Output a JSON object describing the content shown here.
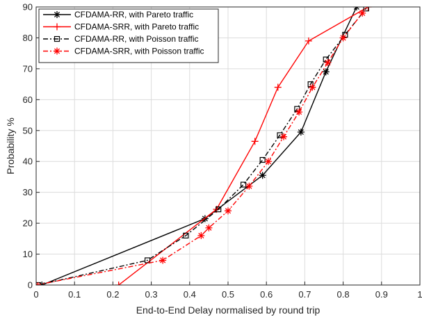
{
  "chart_data": {
    "type": "line",
    "xlabel": "End-to-End Delay normalised by round trip",
    "ylabel": "Probability %",
    "xlim": [
      0,
      1
    ],
    "ylim": [
      0,
      90
    ],
    "xticks": [
      0,
      0.1,
      0.2,
      0.3,
      0.4,
      0.5,
      0.6,
      0.7,
      0.8,
      0.9,
      1
    ],
    "xtick_labels": [
      "0",
      "0.1",
      "0.2",
      "0.3",
      "0.4",
      "0.5",
      "0.6",
      "0.7",
      "0.8",
      "0.9",
      "1"
    ],
    "yticks": [
      0,
      10,
      20,
      30,
      40,
      50,
      60,
      70,
      80,
      90
    ],
    "ytick_labels": [
      "0",
      "10",
      "20",
      "30",
      "40",
      "50",
      "60",
      "70",
      "80",
      "90"
    ],
    "grid": true,
    "legend_position": "top-left",
    "series": [
      {
        "name": "CFDAMA-RR, with Pareto traffic",
        "color": "#000000",
        "line_style": "solid",
        "marker": "asterisk",
        "x": [
          0.015,
          0.44,
          0.59,
          0.69,
          0.755,
          0.835
        ],
        "y": [
          0,
          21.5,
          35.5,
          49.5,
          69,
          90
        ]
      },
      {
        "name": "CFDAMA-SRR, with Pareto traffic",
        "color": "#ff0000",
        "line_style": "solid",
        "marker": "plus",
        "x": [
          0.215,
          0.47,
          0.57,
          0.63,
          0.71,
          0.865
        ],
        "y": [
          0,
          24.5,
          46.5,
          64,
          79,
          90
        ]
      },
      {
        "name": "CFDAMA-RR, with Poisson traffic",
        "color": "#000000",
        "line_style": "dashdot",
        "marker": "square",
        "x": [
          0.005,
          0.29,
          0.39,
          0.475,
          0.54,
          0.59,
          0.635,
          0.68,
          0.715,
          0.755,
          0.805,
          0.86
        ],
        "y": [
          0,
          8,
          16,
          24.5,
          32.5,
          40.5,
          48.5,
          57,
          65,
          73,
          81,
          89.5
        ]
      },
      {
        "name": "CFDAMA-SRR, with Poisson traffic",
        "color": "#ff0000",
        "line_style": "dashdot",
        "marker": "asterisk",
        "x": [
          0.0,
          0.33,
          0.43,
          0.45,
          0.5,
          0.555,
          0.605,
          0.645,
          0.685,
          0.72,
          0.76,
          0.8,
          0.85
        ],
        "y": [
          0,
          8,
          16,
          18.5,
          24,
          32,
          40,
          48,
          56,
          64,
          72,
          80,
          88
        ]
      }
    ]
  }
}
